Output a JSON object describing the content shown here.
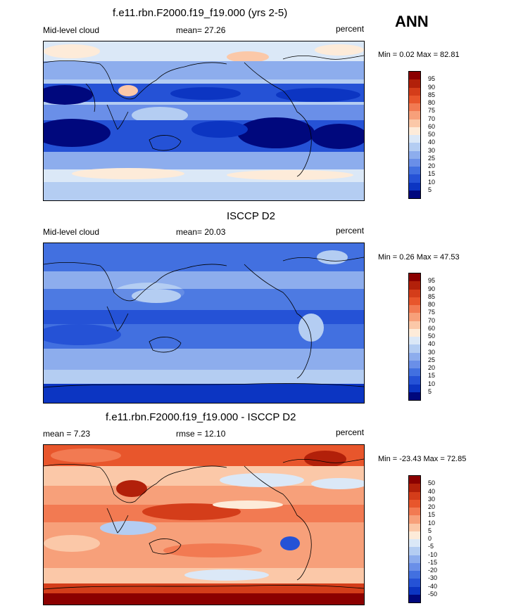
{
  "season": "ANN",
  "panels": [
    {
      "title": "f.e11.rbn.F2000.f19_f19.000 (yrs 2-5)",
      "left": "Mid-level cloud",
      "center": "mean=  27.26",
      "right": "percent",
      "minmax": "Min =   0.02 Max =  82.81"
    },
    {
      "title": "ISCCP D2",
      "left": "Mid-level cloud",
      "center": "mean=  20.03",
      "right": "percent",
      "minmax": "Min =   0.26 Max =  47.53"
    },
    {
      "title": "f.e11.rbn.F2000.f19_f19.000 - ISCCP D2",
      "left": "mean =   7.23",
      "center": "rmse =  12.10",
      "right": "percent",
      "minmax": "Min = -23.43 Max =  72.85"
    }
  ],
  "colorbars": {
    "cloud": {
      "labels": [
        "95",
        "90",
        "85",
        "80",
        "75",
        "70",
        "60",
        "50",
        "40",
        "30",
        "25",
        "20",
        "15",
        "10",
        "5"
      ],
      "colors": [
        "#8b0000",
        "#b2200a",
        "#d43d1a",
        "#e8562c",
        "#f27a52",
        "#f7a07a",
        "#fbc8a8",
        "#fdebd9",
        "#dbe8f7",
        "#b4cdf2",
        "#8daded",
        "#6a8fe8",
        "#4270e0",
        "#2552d6",
        "#0c35c2",
        "#00087d"
      ]
    },
    "diff": {
      "labels": [
        "50",
        "40",
        "30",
        "20",
        "15",
        "10",
        "5",
        "0",
        "-5",
        "-10",
        "-15",
        "-20",
        "-30",
        "-40",
        "-50"
      ],
      "colors": [
        "#8b0000",
        "#b2200a",
        "#d43d1a",
        "#e8562c",
        "#f27a52",
        "#f7a07a",
        "#fbc8a8",
        "#fdebd9",
        "#dbe8f7",
        "#b4cdf2",
        "#8daded",
        "#6a8fe8",
        "#4270e0",
        "#2552d6",
        "#0c35c2",
        "#00087d"
      ]
    }
  }
}
